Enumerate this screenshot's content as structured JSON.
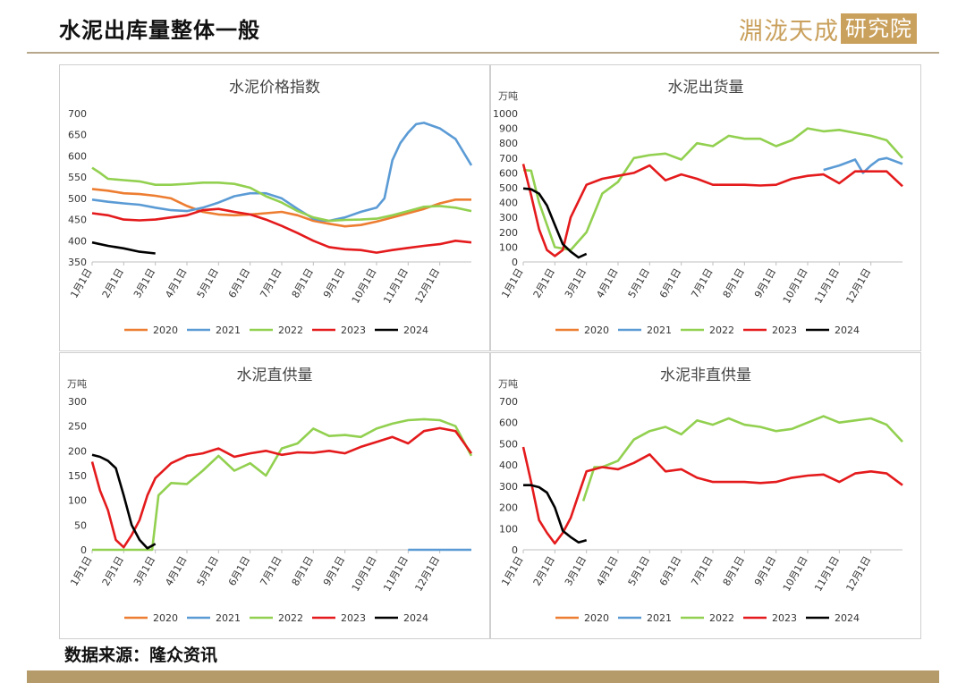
{
  "header": {
    "title": "水泥出库量整体一般",
    "logo_text": "淵泷天成",
    "logo_box_text": "研究院"
  },
  "footer": {
    "source": "数据来源：隆众资讯"
  },
  "colors": {
    "2020": "#ed7d31",
    "2021": "#5b9bd5",
    "2022": "#92d050",
    "2023": "#e41a1c",
    "2024": "#000000",
    "accent": "#b59a6a"
  },
  "chart_data": [
    {
      "type": "line",
      "title": "水泥价格指数",
      "unit": "",
      "ylim": [
        350,
        700
      ],
      "yticks": [
        350,
        400,
        450,
        500,
        550,
        600,
        650,
        700
      ],
      "xlabels": [
        "1月1日",
        "2月1日",
        "3月1日",
        "4月1日",
        "5月1日",
        "6月1日",
        "7月1日",
        "8月1日",
        "9月1日",
        "10月1日",
        "11月1日",
        "12月1日"
      ],
      "xrange": [
        0,
        12
      ],
      "grid": false,
      "legend": "bottom",
      "series": [
        {
          "name": "2020",
          "x": [
            0,
            0.5,
            1,
            1.5,
            2,
            2.5,
            3,
            3.5,
            4,
            4.5,
            5,
            5.5,
            6,
            6.5,
            7,
            7.5,
            8,
            8.5,
            9,
            9.5,
            10,
            10.5,
            11,
            11.5,
            12
          ],
          "y": [
            522,
            518,
            512,
            510,
            506,
            500,
            482,
            468,
            462,
            460,
            462,
            465,
            468,
            460,
            447,
            440,
            434,
            437,
            445,
            455,
            465,
            475,
            488,
            497,
            497
          ]
        },
        {
          "name": "2021",
          "x": [
            0,
            0.5,
            1,
            1.5,
            2,
            2.5,
            3,
            3.5,
            4,
            4.5,
            5,
            5.5,
            6,
            6.5,
            7,
            7.25,
            7.5,
            8,
            8.5,
            9,
            9.25,
            9.5,
            9.75,
            10,
            10.25,
            10.5,
            11,
            11.5,
            12
          ],
          "y": [
            497,
            492,
            488,
            485,
            478,
            472,
            470,
            478,
            490,
            505,
            512,
            512,
            500,
            475,
            452,
            448,
            447,
            455,
            468,
            478,
            500,
            590,
            630,
            655,
            675,
            678,
            665,
            640,
            578
          ]
        },
        {
          "name": "2022",
          "x": [
            0,
            0.25,
            0.5,
            1,
            1.5,
            2,
            2.5,
            3,
            3.5,
            4,
            4.5,
            5,
            5.5,
            6,
            6.5,
            7,
            7.5,
            8,
            8.5,
            9,
            9.5,
            10,
            10.5,
            11,
            11.5,
            12
          ],
          "y": [
            572,
            560,
            546,
            543,
            540,
            532,
            532,
            534,
            537,
            537,
            534,
            525,
            505,
            490,
            470,
            455,
            447,
            449,
            450,
            452,
            460,
            470,
            480,
            482,
            478,
            470
          ]
        },
        {
          "name": "2023",
          "x": [
            0,
            0.5,
            1,
            1.5,
            2,
            2.5,
            3,
            3.5,
            4,
            4.5,
            5,
            5.5,
            6,
            6.5,
            7,
            7.5,
            8,
            8.5,
            9,
            9.5,
            10,
            10.5,
            11,
            11.5,
            12
          ],
          "y": [
            465,
            460,
            450,
            448,
            450,
            455,
            460,
            472,
            475,
            468,
            462,
            450,
            435,
            418,
            400,
            385,
            380,
            378,
            372,
            378,
            383,
            388,
            392,
            400,
            396
          ]
        },
        {
          "name": "2024",
          "x": [
            0,
            0.5,
            1,
            1.5,
            2
          ],
          "y": [
            396,
            388,
            382,
            374,
            370
          ]
        }
      ]
    },
    {
      "type": "line",
      "title": "水泥出货量",
      "unit": "万吨",
      "ylim": [
        0,
        1000
      ],
      "yticks": [
        0,
        100,
        200,
        300,
        400,
        500,
        600,
        700,
        800,
        900,
        1000
      ],
      "xlabels": [
        "1月1日",
        "2月1日",
        "3月1日",
        "4月1日",
        "5月1日",
        "6月1日",
        "7月1日",
        "8月1日",
        "9月1日",
        "10月1日",
        "11月1日",
        "12月1日"
      ],
      "xrange": [
        0,
        12
      ],
      "grid": false,
      "legend": "bottom",
      "series": [
        {
          "name": "2020",
          "x": [],
          "y": []
        },
        {
          "name": "2021",
          "x": [
            9.5,
            10,
            10.5,
            10.75,
            11,
            11.25,
            11.5,
            12
          ],
          "y": [
            620,
            650,
            690,
            600,
            650,
            690,
            700,
            660
          ]
        },
        {
          "name": "2022",
          "x": [
            0,
            0.25,
            0.5,
            1,
            1.5,
            2,
            2.5,
            3,
            3.5,
            4,
            4.5,
            5,
            5.5,
            6,
            6.5,
            7,
            7.5,
            8,
            8.5,
            9,
            9.5,
            10,
            10.5,
            11,
            11.5,
            12
          ],
          "y": [
            620,
            615,
            400,
            100,
            80,
            200,
            460,
            540,
            700,
            720,
            730,
            690,
            800,
            780,
            850,
            830,
            830,
            780,
            820,
            900,
            880,
            890,
            870,
            850,
            820,
            700
          ]
        },
        {
          "name": "2023",
          "x": [
            0,
            0.25,
            0.5,
            0.75,
            1,
            1.25,
            1.5,
            2,
            2.5,
            3,
            3.5,
            4,
            4.5,
            5,
            5.5,
            6,
            6.5,
            7,
            7.5,
            8,
            8.5,
            9,
            9.5,
            10,
            10.5,
            11,
            11.5,
            12
          ],
          "y": [
            660,
            450,
            220,
            80,
            40,
            80,
            300,
            520,
            560,
            580,
            600,
            650,
            550,
            590,
            560,
            520,
            520,
            520,
            515,
            520,
            560,
            580,
            590,
            530,
            610,
            610,
            610,
            510
          ]
        },
        {
          "name": "2024",
          "x": [
            0,
            0.25,
            0.5,
            0.75,
            1,
            1.25,
            1.5,
            1.75,
            2
          ],
          "y": [
            495,
            490,
            460,
            380,
            250,
            120,
            70,
            30,
            55
          ]
        }
      ]
    },
    {
      "type": "line",
      "title": "水泥直供量",
      "unit": "万吨",
      "ylim": [
        0,
        300
      ],
      "yticks": [
        0,
        50,
        100,
        150,
        200,
        250,
        300
      ],
      "xlabels": [
        "1月1日",
        "2月1日",
        "3月1日",
        "4月1日",
        "5月1日",
        "6月1日",
        "7月1日",
        "8月1日",
        "9月1日",
        "10月1日",
        "11月1日",
        "12月1日"
      ],
      "xrange": [
        0,
        12
      ],
      "grid": false,
      "legend": "bottom",
      "series": [
        {
          "name": "2020",
          "x": [],
          "y": []
        },
        {
          "name": "2021",
          "x": [
            10,
            10.5,
            11,
            11.5,
            12
          ],
          "y": [
            0,
            0,
            0,
            0,
            0
          ]
        },
        {
          "name": "2022",
          "x": [
            0,
            0.5,
            1,
            1.5,
            1.9,
            2.1,
            2.5,
            3,
            3.5,
            4,
            4.5,
            5,
            5.5,
            6,
            6.5,
            7,
            7.5,
            8,
            8.5,
            9,
            9.5,
            10,
            10.5,
            11,
            11.5,
            12
          ],
          "y": [
            0,
            0,
            0,
            0,
            0,
            110,
            135,
            133,
            160,
            190,
            160,
            175,
            150,
            205,
            215,
            245,
            230,
            232,
            228,
            245,
            255,
            262,
            264,
            262,
            250,
            190
          ]
        },
        {
          "name": "2023",
          "x": [
            0,
            0.25,
            0.5,
            0.75,
            1,
            1.25,
            1.5,
            1.75,
            2,
            2.5,
            3,
            3.5,
            4,
            4.5,
            5,
            5.5,
            6,
            6.5,
            7,
            7.5,
            8,
            8.5,
            9,
            9.5,
            10,
            10.5,
            11,
            11.5,
            12
          ],
          "y": [
            178,
            120,
            80,
            20,
            5,
            30,
            60,
            110,
            145,
            175,
            190,
            195,
            205,
            188,
            195,
            200,
            192,
            197,
            196,
            200,
            195,
            208,
            218,
            228,
            215,
            240,
            246,
            240,
            195
          ]
        },
        {
          "name": "2024",
          "x": [
            0,
            0.25,
            0.5,
            0.75,
            1,
            1.25,
            1.5,
            1.75,
            2
          ],
          "y": [
            192,
            188,
            180,
            165,
            110,
            50,
            20,
            3,
            12
          ]
        }
      ]
    },
    {
      "type": "line",
      "title": "水泥非直供量",
      "unit": "万吨",
      "ylim": [
        0,
        700
      ],
      "yticks": [
        0,
        100,
        200,
        300,
        400,
        500,
        600,
        700
      ],
      "xlabels": [
        "1月1日",
        "2月1日",
        "3月1日",
        "4月1日",
        "5月1日",
        "6月1日",
        "7月1日",
        "8月1日",
        "9月1日",
        "10月1日",
        "11月1日",
        "12月1日"
      ],
      "xrange": [
        0,
        12
      ],
      "grid": false,
      "legend": "bottom",
      "series": [
        {
          "name": "2020",
          "x": [],
          "y": []
        },
        {
          "name": "2021",
          "x": [],
          "y": []
        },
        {
          "name": "2022",
          "x": [
            1.9,
            2.25,
            2.5,
            3,
            3.5,
            4,
            4.5,
            5,
            5.5,
            6,
            6.5,
            7,
            7.5,
            8,
            8.5,
            9,
            9.5,
            10,
            10.5,
            11,
            11.5,
            12
          ],
          "y": [
            230,
            390,
            390,
            420,
            520,
            560,
            580,
            545,
            610,
            590,
            620,
            590,
            580,
            560,
            570,
            600,
            630,
            600,
            610,
            620,
            590,
            510
          ]
        },
        {
          "name": "2023",
          "x": [
            0,
            0.25,
            0.5,
            0.75,
            1,
            1.25,
            1.5,
            1.75,
            2,
            2.5,
            3,
            3.5,
            4,
            4.5,
            5,
            5.5,
            6,
            6.5,
            7,
            7.5,
            8,
            8.5,
            9,
            9.5,
            10,
            10.5,
            11,
            11.5,
            12
          ],
          "y": [
            485,
            320,
            140,
            80,
            30,
            80,
            150,
            260,
            370,
            390,
            380,
            410,
            450,
            370,
            380,
            340,
            320,
            320,
            320,
            315,
            320,
            340,
            350,
            355,
            320,
            360,
            370,
            360,
            305
          ]
        },
        {
          "name": "2024",
          "x": [
            0,
            0.25,
            0.5,
            0.75,
            1,
            1.25,
            1.5,
            1.75,
            2
          ],
          "y": [
            305,
            305,
            295,
            270,
            200,
            90,
            60,
            35,
            45
          ]
        }
      ]
    }
  ]
}
